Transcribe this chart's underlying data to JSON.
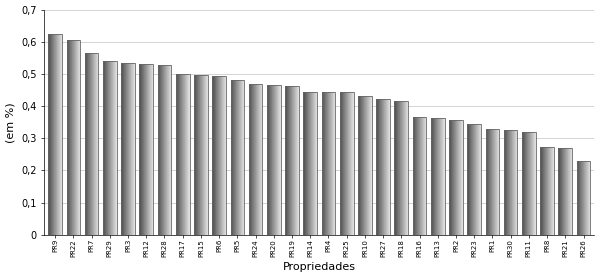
{
  "categories": [
    "PR9",
    "PR22",
    "PR7",
    "PR29",
    "PR3",
    "PR12",
    "PR28",
    "PR17",
    "PR15",
    "PR6",
    "PR5",
    "PR24",
    "PR20",
    "PR19",
    "PR14",
    "PR4",
    "PR25",
    "PR10",
    "PR27",
    "PR18",
    "PR16",
    "PR13",
    "PR2",
    "PR23",
    "PR1",
    "PR30",
    "PR11",
    "PR8",
    "PR21",
    "PR26"
  ],
  "values": [
    0.625,
    0.605,
    0.565,
    0.54,
    0.533,
    0.53,
    0.528,
    0.5,
    0.498,
    0.492,
    0.482,
    0.47,
    0.466,
    0.462,
    0.445,
    0.443,
    0.443,
    0.43,
    0.422,
    0.415,
    0.365,
    0.362,
    0.358,
    0.345,
    0.33,
    0.325,
    0.32,
    0.273,
    0.27,
    0.228
  ],
  "ylabel": "(em %)",
  "xlabel": "Propriedades",
  "ylim": [
    0,
    0.7
  ],
  "yticks": [
    0.0,
    0.1,
    0.2,
    0.3,
    0.4,
    0.5,
    0.6,
    0.7
  ],
  "ytick_labels": [
    "0",
    "0,1",
    "0,2",
    "0,3",
    "0,4",
    "0,5",
    "0,6",
    "0,7"
  ],
  "bar_edge_color": "#666666",
  "bar_color_dark": [
    0.3,
    0.3,
    0.3
  ],
  "bar_color_light": [
    0.88,
    0.88,
    0.88
  ],
  "background_color": "#ffffff",
  "grid_color": "#cccccc",
  "bar_width": 0.75,
  "n_grad_segments": 60
}
